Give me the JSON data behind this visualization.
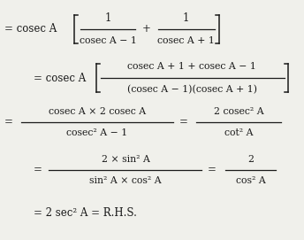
{
  "background_color": "#f0f0eb",
  "text_color": "#1a1a1a",
  "figsize": [
    3.44,
    2.71
  ],
  "dpi": 100,
  "line1_prefix": "= cosec A",
  "line1_frac1_num": "1",
  "line1_frac1_den": "cosec A − 1",
  "line1_plus": "+",
  "line1_frac2_num": "1",
  "line1_frac2_den": "cosec A + 1",
  "line2_prefix": "= cosec A",
  "line2_num": "cosec A + 1 + cosec A − 1",
  "line2_den": "(cosec A − 1)(cosec A + 1)",
  "line3_eq": "=",
  "line3_num1": "cosec A × 2 cosec A",
  "line3_den1": "cosec² A − 1",
  "line3_eq2": "=",
  "line3_num2": "2 cosec² A",
  "line3_den2": "cot² A",
  "line4_eq": "=",
  "line4_num1": "2 × sin² A",
  "line4_den1": "sin² A × cos² A",
  "line4_eq2": "=",
  "line4_num2": "2",
  "line4_den2": "cos² A",
  "line5": "= 2 sec² A = R.H.S."
}
